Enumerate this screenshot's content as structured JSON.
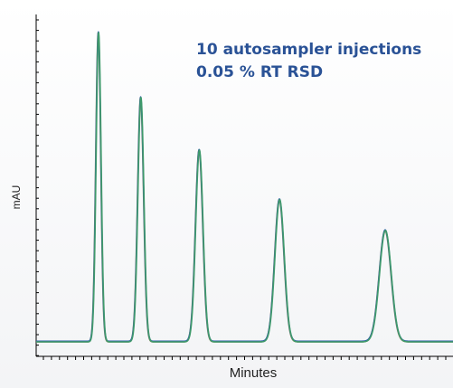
{
  "chart_data": {
    "type": "line",
    "title": "",
    "xlabel": "Minutes",
    "ylabel": "mAU",
    "annotations": [
      "10 autosampler injections",
      "0.05 % RT RSD"
    ],
    "grid": false,
    "tick_labels_shown": false,
    "peaks": [
      {
        "retention": 1.0,
        "height": 1.0
      },
      {
        "retention": 1.68,
        "height": 0.79
      },
      {
        "retention": 2.62,
        "height": 0.62
      },
      {
        "retention": 3.91,
        "height": 0.46
      },
      {
        "retention": 5.61,
        "height": 0.36
      }
    ],
    "series_colors": [
      "#2b5aa8",
      "#3f9a6b",
      "#8a8a5a"
    ],
    "x_range": [
      0,
      6.7
    ],
    "y_range": [
      -0.03,
      1.13
    ]
  }
}
